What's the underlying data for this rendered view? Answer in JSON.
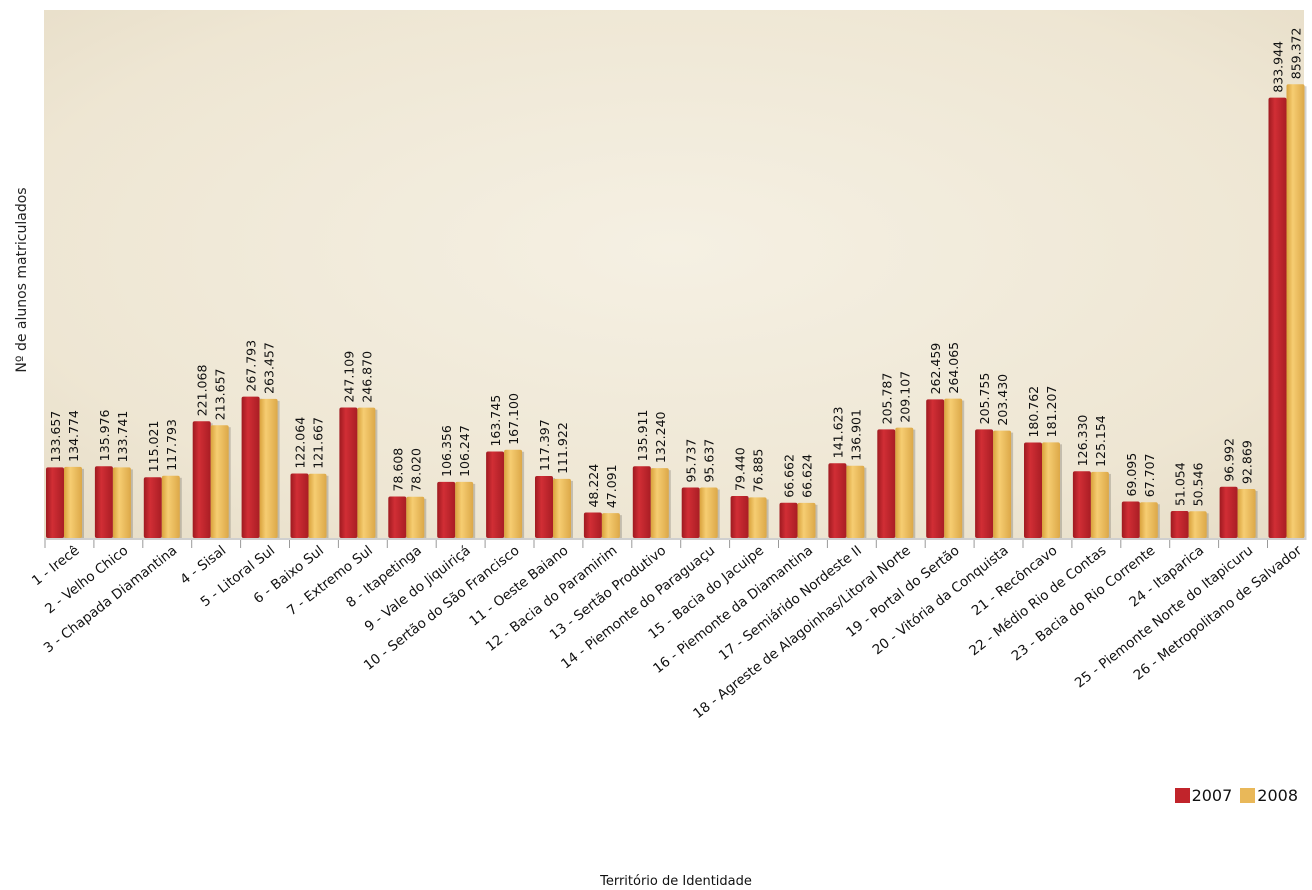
{
  "chart_data": {
    "type": "bar",
    "xlabel": "Território de Identidade",
    "ylabel": "Nº de alunos matriculados",
    "ylim": [
      0,
      1000000
    ],
    "grid": false,
    "legend": "bottom-right",
    "categories": [
      "1 - Irecê",
      "2 - Velho Chico",
      "3 - Chapada Diamantina",
      "4 - Sisal",
      "5 - Litoral Sul",
      "6 - Baixo Sul",
      "7 - Extremo Sul",
      "8 - Itapetinga",
      "9 - Vale do Jiquiriçá",
      "10 - Sertão do São Francisco",
      "11 - Oeste Baiano",
      "12 - Bacia do Paramirim",
      "13 - Sertão Produtivo",
      "14 - Piemonte do Paraguaçu",
      "15 - Bacia do Jacuipe",
      "16 - Piemonte da Diamantina",
      "17 - Semiárido Nordeste II",
      "18 - Agreste de Alagoinhas/Litoral Norte",
      "19 - Portal do Sertão",
      "20 - Vitória da Conquista",
      "21 - Recôncavo",
      "22 - Médio Rio de Contas",
      "23 - Bacia do Rio Corrente",
      "24 - Itaparica",
      "25 - Piemonte Norte do Itapicuru",
      "26 - Metropolitano de Salvador"
    ],
    "series": [
      {
        "name": "2007",
        "color": "#c1242b",
        "values": [
          133657,
          135976,
          115021,
          221068,
          267793,
          122064,
          247109,
          78608,
          106356,
          163745,
          117397,
          48224,
          135911,
          95737,
          79440,
          66662,
          141623,
          205787,
          262459,
          205755,
          180762,
          126330,
          69095,
          51054,
          96992,
          833944
        ],
        "labels": [
          "133.657",
          "135.976",
          "115.021",
          "221.068",
          "267.793",
          "122.064",
          "247.109",
          "78.608",
          "106.356",
          "163.745",
          "117.397",
          "48.224",
          "135.911",
          "95.737",
          "79.440",
          "66.662",
          "141.623",
          "205.787",
          "262.459",
          "205.755",
          "180.762",
          "126.330",
          "69.095",
          "51.054",
          "96.992",
          "833.944"
        ]
      },
      {
        "name": "2008",
        "color": "#e9b859",
        "values": [
          134774,
          133741,
          117793,
          213657,
          263457,
          121667,
          246870,
          78020,
          106247,
          167100,
          111922,
          47091,
          132240,
          95637,
          76885,
          66624,
          136901,
          209107,
          264065,
          203430,
          181207,
          125154,
          67707,
          50546,
          92869,
          859372
        ],
        "labels": [
          "134.774",
          "133.741",
          "117.793",
          "213.657",
          "263.457",
          "121.667",
          "246.870",
          "78.020",
          "106.247",
          "167.100",
          "111.922",
          "47.091",
          "132.240",
          "95.637",
          "76.885",
          "66.624",
          "136.901",
          "209.107",
          "264.065",
          "203.430",
          "181.207",
          "125.154",
          "67.707",
          "50.546",
          "92.869",
          "859.372"
        ]
      }
    ]
  }
}
